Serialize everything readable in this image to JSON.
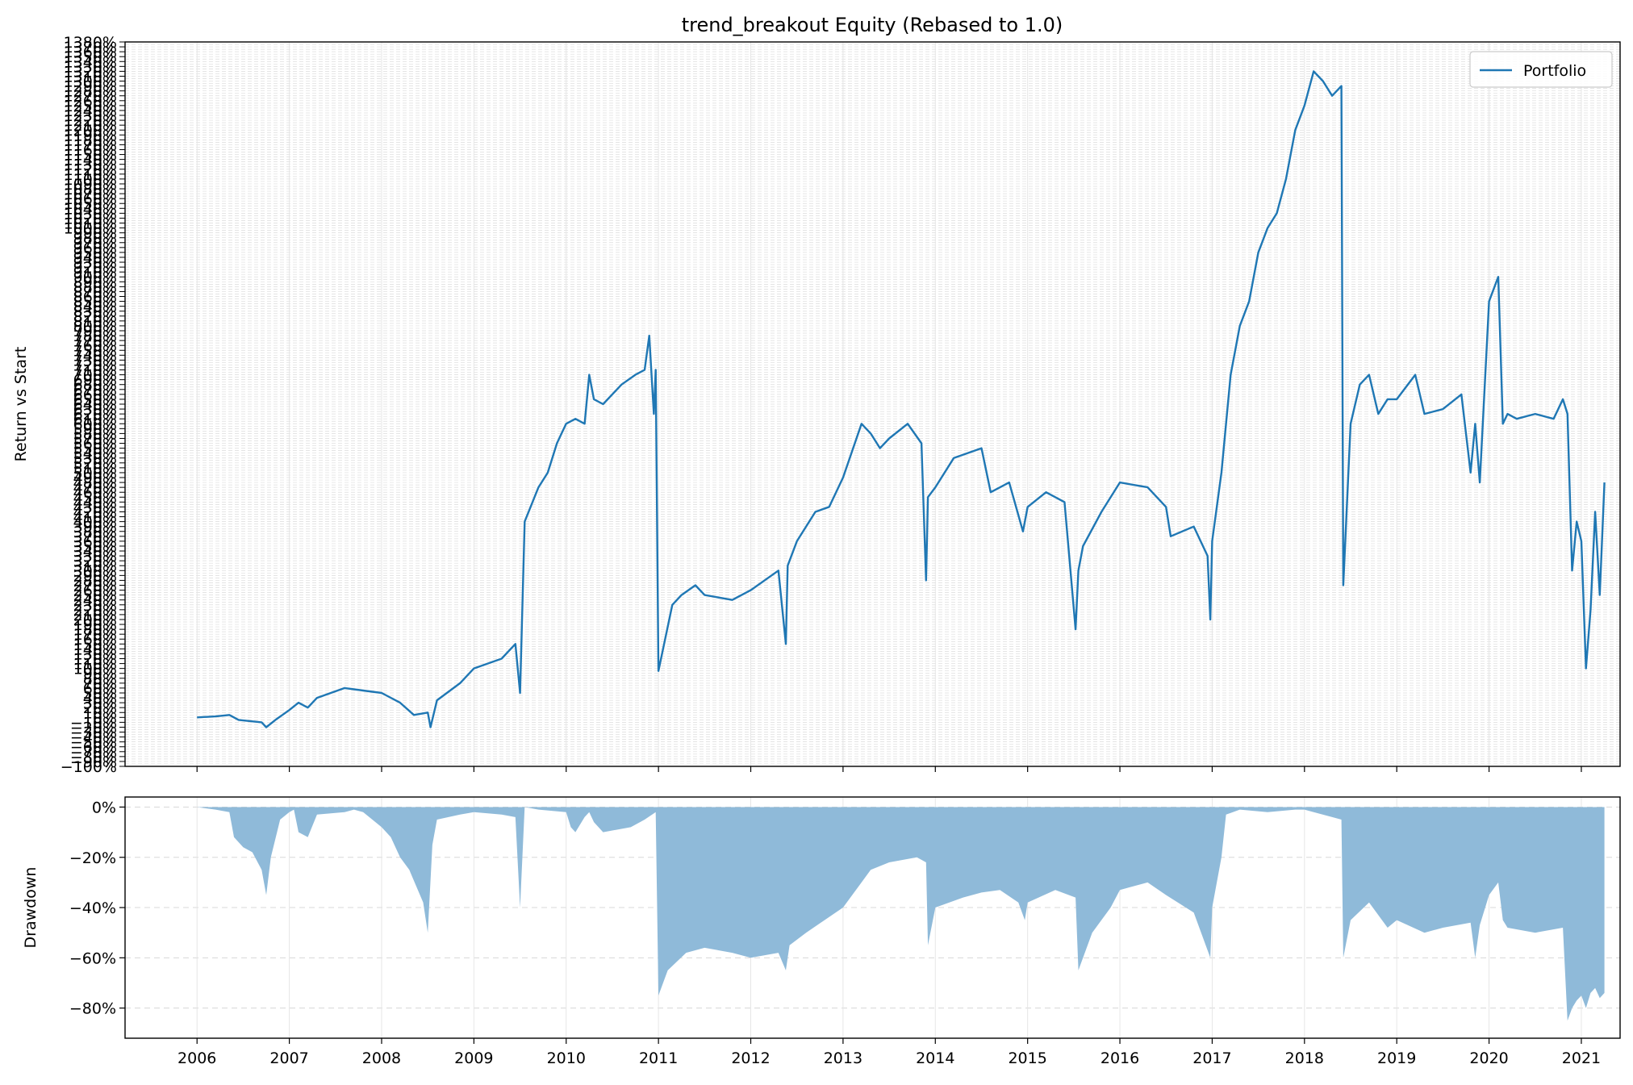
{
  "chart_data": [
    {
      "type": "line",
      "title": "trend_breakout Equity (Rebased to 1.0)",
      "ylabel": "Return vs Start",
      "xlabel": "",
      "x_ticks": [
        "2006",
        "2007",
        "2008",
        "2009",
        "2010",
        "2011",
        "2012",
        "2013",
        "2014",
        "2015",
        "2016",
        "2017",
        "2018",
        "2019",
        "2020",
        "2021"
      ],
      "x_range": [
        2005.22,
        2021.42
      ],
      "y_range_pct": [
        -100,
        1380
      ],
      "y_tick_labels": [
        "-100%",
        "1380%"
      ],
      "legend": {
        "placement": "top-right",
        "entries": [
          "Portfolio"
        ]
      },
      "grid": true,
      "line_color": "#1f77b4",
      "series": [
        {
          "name": "Portfolio",
          "unit": "percent return vs start",
          "x": [
            2006.0,
            2006.2,
            2006.35,
            2006.45,
            2006.7,
            2006.75,
            2006.85,
            2007.0,
            2007.1,
            2007.2,
            2007.3,
            2007.6,
            2007.8,
            2008.0,
            2008.2,
            2008.35,
            2008.5,
            2008.53,
            2008.6,
            2008.85,
            2009.0,
            2009.3,
            2009.45,
            2009.5,
            2009.55,
            2009.7,
            2009.8,
            2009.9,
            2010.0,
            2010.1,
            2010.2,
            2010.25,
            2010.3,
            2010.4,
            2010.6,
            2010.75,
            2010.85,
            2010.9,
            2010.95,
            2010.97,
            2011.0,
            2011.15,
            2011.25,
            2011.4,
            2011.5,
            2011.8,
            2012.0,
            2012.3,
            2012.38,
            2012.4,
            2012.5,
            2012.7,
            2012.85,
            2013.0,
            2013.2,
            2013.3,
            2013.4,
            2013.5,
            2013.7,
            2013.85,
            2013.9,
            2013.92,
            2014.0,
            2014.2,
            2014.5,
            2014.6,
            2014.8,
            2014.95,
            2015.0,
            2015.2,
            2015.4,
            2015.52,
            2015.55,
            2015.6,
            2015.8,
            2016.0,
            2016.3,
            2016.5,
            2016.55,
            2016.8,
            2016.95,
            2016.98,
            2017.0,
            2017.1,
            2017.2,
            2017.3,
            2017.4,
            2017.5,
            2017.6,
            2017.7,
            2017.8,
            2017.9,
            2018.0,
            2018.1,
            2018.2,
            2018.3,
            2018.4,
            2018.42,
            2018.5,
            2018.6,
            2018.7,
            2018.8,
            2018.9,
            2019.0,
            2019.2,
            2019.3,
            2019.5,
            2019.7,
            2019.8,
            2019.85,
            2019.9,
            2020.0,
            2020.1,
            2020.15,
            2020.2,
            2020.3,
            2020.5,
            2020.7,
            2020.8,
            2020.85,
            2020.9,
            2020.95,
            2021.0,
            2021.05,
            2021.1,
            2021.15,
            2021.2,
            2021.25
          ],
          "y": [
            0,
            2,
            5,
            -5,
            -10,
            -20,
            -5,
            15,
            30,
            20,
            40,
            60,
            55,
            50,
            30,
            5,
            10,
            -20,
            35,
            70,
            100,
            120,
            150,
            50,
            400,
            470,
            500,
            560,
            600,
            610,
            600,
            700,
            650,
            640,
            680,
            700,
            710,
            780,
            620,
            710,
            95,
            230,
            250,
            270,
            250,
            240,
            260,
            300,
            150,
            310,
            360,
            420,
            430,
            490,
            600,
            580,
            550,
            570,
            600,
            560,
            280,
            450,
            470,
            530,
            550,
            460,
            480,
            380,
            430,
            460,
            440,
            180,
            300,
            350,
            420,
            480,
            470,
            430,
            370,
            390,
            330,
            200,
            360,
            500,
            700,
            800,
            850,
            950,
            1000,
            1030,
            1100,
            1200,
            1250,
            1320,
            1300,
            1270,
            1290,
            270,
            600,
            680,
            700,
            620,
            650,
            650,
            700,
            620,
            630,
            660,
            500,
            600,
            480,
            850,
            900,
            600,
            620,
            610,
            620,
            610,
            650,
            620,
            300,
            400,
            360,
            100,
            220,
            420,
            250,
            480
          ]
        }
      ]
    },
    {
      "type": "area",
      "ylabel": "Drawdown",
      "xlabel": "",
      "x_ticks": [
        "2006",
        "2007",
        "2008",
        "2009",
        "2010",
        "2011",
        "2012",
        "2013",
        "2014",
        "2015",
        "2016",
        "2017",
        "2018",
        "2019",
        "2020",
        "2021"
      ],
      "x_range": [
        2005.22,
        2021.42
      ],
      "ylim": [
        -92,
        4
      ],
      "y_ticks": [
        0,
        -20,
        -40,
        -60,
        -80
      ],
      "y_tick_labels": [
        "0%",
        "-20%",
        "-40%",
        "-60%",
        "-80%"
      ],
      "grid": true,
      "fill_color": "#8fbad9",
      "series": [
        {
          "name": "",
          "unit": "percent",
          "x": [
            2006.0,
            2006.2,
            2006.35,
            2006.4,
            2006.5,
            2006.6,
            2006.7,
            2006.75,
            2006.8,
            2006.9,
            2007.0,
            2007.05,
            2007.1,
            2007.2,
            2007.3,
            2007.6,
            2007.7,
            2007.8,
            2008.0,
            2008.1,
            2008.2,
            2008.3,
            2008.45,
            2008.5,
            2008.55,
            2008.6,
            2008.85,
            2009.0,
            2009.3,
            2009.45,
            2009.5,
            2009.55,
            2009.7,
            2010.0,
            2010.05,
            2010.1,
            2010.2,
            2010.25,
            2010.3,
            2010.4,
            2010.7,
            2010.8,
            2010.85,
            2010.97,
            2011.0,
            2011.1,
            2011.3,
            2011.5,
            2011.8,
            2012.0,
            2012.3,
            2012.38,
            2012.42,
            2012.6,
            2012.8,
            2013.0,
            2013.2,
            2013.3,
            2013.5,
            2013.8,
            2013.9,
            2013.92,
            2014.0,
            2014.3,
            2014.5,
            2014.7,
            2014.9,
            2014.97,
            2015.0,
            2015.3,
            2015.52,
            2015.55,
            2015.7,
            2015.9,
            2016.0,
            2016.3,
            2016.5,
            2016.8,
            2016.98,
            2017.0,
            2017.1,
            2017.15,
            2017.3,
            2017.6,
            2017.9,
            2018.0,
            2018.1,
            2018.3,
            2018.4,
            2018.42,
            2018.5,
            2018.7,
            2018.9,
            2019.0,
            2019.3,
            2019.5,
            2019.8,
            2019.85,
            2019.9,
            2020.0,
            2020.1,
            2020.15,
            2020.2,
            2020.5,
            2020.8,
            2020.85,
            2020.9,
            2020.95,
            2021.0,
            2021.05,
            2021.1,
            2021.15,
            2021.2,
            2021.25
          ],
          "y": [
            0,
            -1,
            -2,
            -12,
            -16,
            -18,
            -25,
            -35,
            -20,
            -5,
            -2,
            -1,
            -10,
            -12,
            -3,
            -2,
            -1,
            -2,
            -8,
            -12,
            -20,
            -25,
            -38,
            -50,
            -15,
            -5,
            -3,
            -2,
            -3,
            -4,
            -40,
            0,
            -1,
            -2,
            -8,
            -10,
            -4,
            -2,
            -6,
            -10,
            -8,
            -6,
            -5,
            -2,
            -75,
            -65,
            -58,
            -56,
            -58,
            -60,
            -58,
            -65,
            -55,
            -50,
            -45,
            -40,
            -30,
            -25,
            -22,
            -20,
            -22,
            -55,
            -40,
            -36,
            -34,
            -33,
            -38,
            -45,
            -38,
            -33,
            -36,
            -65,
            -50,
            -40,
            -33,
            -30,
            -35,
            -42,
            -60,
            -40,
            -20,
            -3,
            -1,
            -2,
            -1,
            -1,
            -2,
            -4,
            -5,
            -60,
            -45,
            -38,
            -48,
            -45,
            -50,
            -48,
            -46,
            -60,
            -47,
            -35,
            -30,
            -45,
            -48,
            -50,
            -48,
            -85,
            -80,
            -77,
            -75,
            -80,
            -74,
            -72,
            -76,
            -74
          ]
        }
      ]
    }
  ]
}
